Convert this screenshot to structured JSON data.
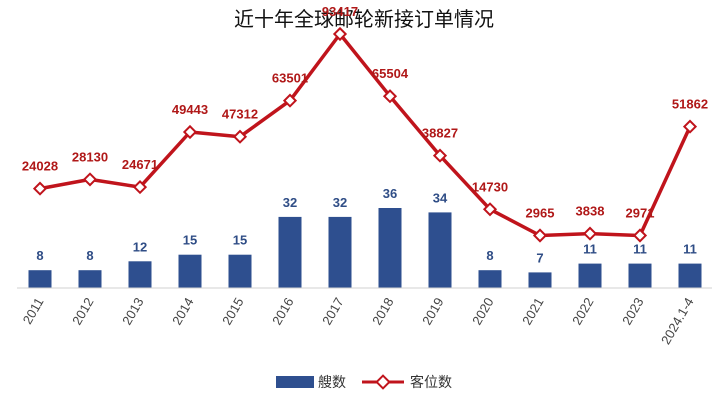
{
  "chart_data": {
    "type": "bar",
    "title": "近十年全球邮轮新接订单情况",
    "categories": [
      "2011",
      "2012",
      "2013",
      "2014",
      "2015",
      "2016",
      "2017",
      "2018",
      "2019",
      "2020",
      "2021",
      "2022",
      "2023",
      "2024.1-4"
    ],
    "series": [
      {
        "name": "艘数",
        "type": "bar",
        "color": "#2e4f8f",
        "values": [
          8,
          8,
          12,
          15,
          15,
          32,
          32,
          36,
          34,
          8,
          7,
          11,
          11,
          11
        ]
      },
      {
        "name": "客位数",
        "type": "line",
        "color": "#c0141c",
        "values": [
          24028,
          28130,
          24671,
          49443,
          47312,
          63501,
          93417,
          65504,
          38827,
          14730,
          2965,
          3838,
          2971,
          51862
        ]
      }
    ],
    "xlabel": "",
    "ylabel": "",
    "grid": false,
    "legend_position": "bottom"
  }
}
